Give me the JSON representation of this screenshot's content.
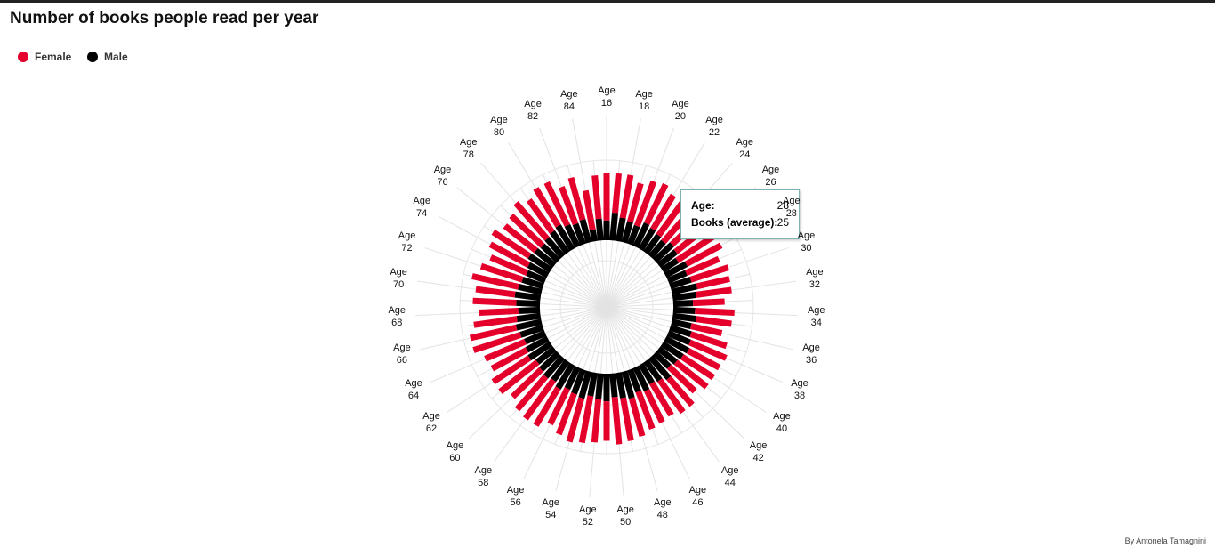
{
  "chart_data": {
    "type": "radial-stacked-bar",
    "title": "Number of books people read per year",
    "credit": "By Antonela Tamagnini",
    "categories": [
      "Age 16",
      null,
      "Age 18",
      null,
      "Age 20",
      null,
      "Age 22",
      null,
      "Age 24",
      null,
      "Age 26",
      null,
      "Age 28",
      null,
      "Age 30",
      null,
      "Age 32",
      null,
      "Age 34",
      null,
      "Age 36",
      null,
      "Age 38",
      null,
      "Age 40",
      null,
      "Age 42",
      null,
      "Age 44",
      null,
      "Age 46",
      null,
      "Age 48",
      null,
      "Age 50",
      null,
      "Age 52",
      null,
      "Age 54",
      null,
      "Age 56",
      null,
      "Age 58",
      null,
      "Age 60",
      null,
      "Age 62",
      null,
      "Age 64",
      null,
      "Age 66",
      null,
      "Age 68",
      null,
      "Age 70",
      null,
      "Age 72",
      null,
      "Age 74",
      null,
      "Age 76",
      null,
      "Age 78",
      null,
      "Age 80",
      null,
      "Age 82",
      null,
      "Age 84",
      null
    ],
    "series": [
      {
        "name": "Male",
        "color": "#000000",
        "values": [
          10,
          14,
          12,
          11,
          10,
          13,
          12,
          11,
          10,
          12,
          11,
          9,
          12,
          10,
          11,
          13,
          12,
          10,
          11,
          12,
          10,
          11,
          12,
          13,
          12,
          11,
          10,
          14,
          12,
          11,
          13,
          12,
          14,
          13,
          12,
          14,
          13,
          12,
          14,
          13,
          12,
          14,
          12,
          13,
          12,
          11,
          13,
          12,
          11,
          12,
          13,
          12,
          11,
          12,
          13,
          12,
          11,
          10,
          11,
          13,
          12,
          11,
          12,
          13,
          14,
          12,
          11,
          12,
          6,
          11
        ]
      },
      {
        "name": "Female",
        "color": "#e4002b",
        "values": [
          24,
          20,
          22,
          20,
          24,
          22,
          20,
          21,
          22,
          20,
          21,
          25,
          20,
          18,
          20,
          17,
          18,
          16,
          20,
          18,
          16,
          19,
          20,
          18,
          19,
          20,
          18,
          18,
          20,
          19,
          18,
          20,
          20,
          22,
          24,
          20,
          22,
          24,
          23,
          22,
          20,
          22,
          24,
          22,
          20,
          24,
          22,
          20,
          22,
          25,
          24,
          22,
          20,
          22,
          20,
          24,
          22,
          20,
          22,
          22,
          20,
          22,
          24,
          20,
          22,
          24,
          20,
          22,
          20,
          22
        ]
      }
    ],
    "ylim": [
      0,
      45
    ],
    "tooltip": {
      "age_label": "Age:",
      "age": 28,
      "books_label": "Books (average):",
      "books": 25
    }
  }
}
